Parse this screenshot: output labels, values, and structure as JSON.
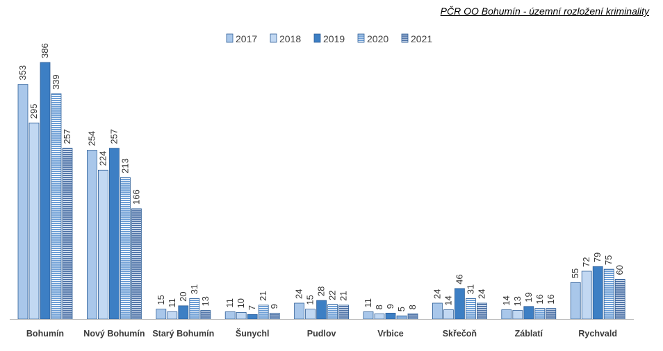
{
  "title": "PČR OO Bohumín - územní rozložení kriminality",
  "chart_data": {
    "type": "bar",
    "title": "PČR OO Bohumín - územní rozložení kriminality",
    "xlabel": "",
    "ylabel": "",
    "legend_position": "top",
    "grid": false,
    "ylim": [
      0,
      400
    ],
    "categories": [
      "Bohumín",
      "Nový Bohumín",
      "Starý Bohumín",
      "Šunychl",
      "Pudlov",
      "Vrbice",
      "Skřečoň",
      "Záblatí",
      "Rychvald"
    ],
    "series": [
      {
        "name": "2017",
        "color": "#a9c7ea",
        "pattern": "solid",
        "values": [
          353,
          254,
          15,
          11,
          24,
          11,
          24,
          14,
          55
        ]
      },
      {
        "name": "2018",
        "color": "#c2d8f2",
        "pattern": "solid",
        "values": [
          295,
          224,
          11,
          10,
          15,
          8,
          14,
          13,
          72
        ]
      },
      {
        "name": "2019",
        "color": "#3d7fc4",
        "pattern": "solid",
        "values": [
          386,
          257,
          20,
          7,
          28,
          9,
          46,
          19,
          79
        ]
      },
      {
        "name": "2020",
        "color": "#6e9fd6",
        "pattern": "horizontal-stripes",
        "values": [
          339,
          213,
          31,
          21,
          22,
          5,
          31,
          16,
          75
        ]
      },
      {
        "name": "2021",
        "color": "#5679ab",
        "pattern": "horizontal-stripes",
        "values": [
          257,
          166,
          13,
          9,
          21,
          8,
          24,
          16,
          60
        ]
      }
    ]
  }
}
